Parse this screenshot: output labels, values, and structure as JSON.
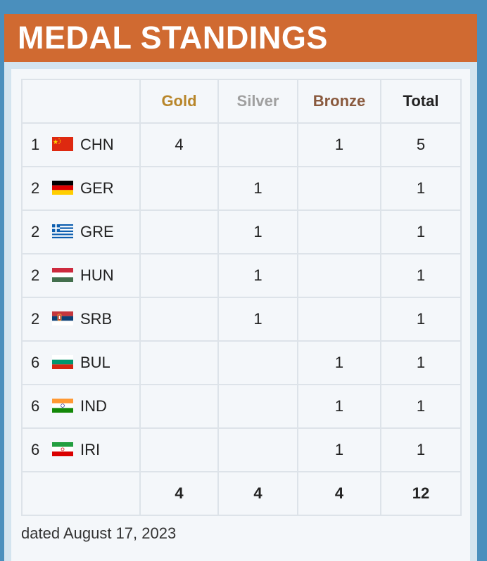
{
  "widget": {
    "title": "MEDAL STANDINGS",
    "colors": {
      "background": "#4a8fbd",
      "header": "#d06a31",
      "gold": "#b8862a",
      "silver": "#a0a0a0",
      "bronze": "#8a5a3e",
      "total": "#222222"
    }
  },
  "table": {
    "headers": {
      "gold": "Gold",
      "silver": "Silver",
      "bronze": "Bronze",
      "total": "Total"
    },
    "rows": [
      {
        "rank": "1",
        "flag": "china-flag-icon",
        "code": "CHN",
        "gold": "4",
        "silver": "",
        "bronze": "1",
        "total": "5"
      },
      {
        "rank": "2",
        "flag": "germany-flag-icon",
        "code": "GER",
        "gold": "",
        "silver": "1",
        "bronze": "",
        "total": "1"
      },
      {
        "rank": "2",
        "flag": "greece-flag-icon",
        "code": "GRE",
        "gold": "",
        "silver": "1",
        "bronze": "",
        "total": "1"
      },
      {
        "rank": "2",
        "flag": "hungary-flag-icon",
        "code": "HUN",
        "gold": "",
        "silver": "1",
        "bronze": "",
        "total": "1"
      },
      {
        "rank": "2",
        "flag": "serbia-flag-icon",
        "code": "SRB",
        "gold": "",
        "silver": "1",
        "bronze": "",
        "total": "1"
      },
      {
        "rank": "6",
        "flag": "bulgaria-flag-icon",
        "code": "BUL",
        "gold": "",
        "silver": "",
        "bronze": "1",
        "total": "1"
      },
      {
        "rank": "6",
        "flag": "india-flag-icon",
        "code": "IND",
        "gold": "",
        "silver": "",
        "bronze": "1",
        "total": "1"
      },
      {
        "rank": "6",
        "flag": "iran-flag-icon",
        "code": "IRI",
        "gold": "",
        "silver": "",
        "bronze": "1",
        "total": "1"
      }
    ],
    "totals": {
      "gold": "4",
      "silver": "4",
      "bronze": "4",
      "total": "12"
    }
  },
  "footnote": "dated August 17, 2023"
}
